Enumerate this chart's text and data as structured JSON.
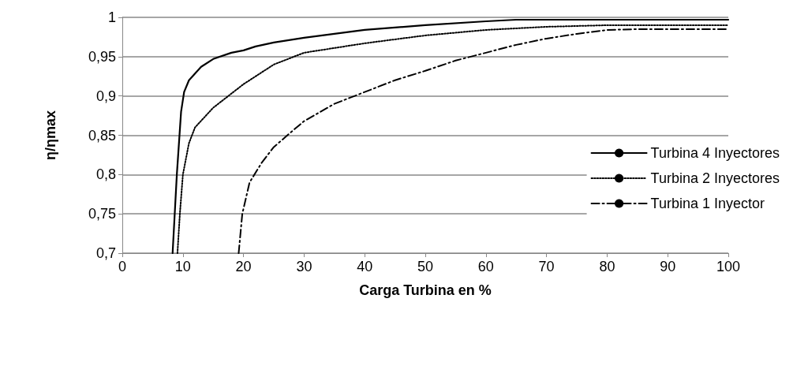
{
  "chart_data": {
    "type": "line",
    "xlabel": "Carga Turbina en %",
    "ylabel": "η/ηmax",
    "xlim": [
      0,
      100
    ],
    "xticks": [
      0,
      10,
      20,
      30,
      40,
      50,
      60,
      70,
      80,
      90,
      100
    ],
    "ylim": [
      0.7,
      1
    ],
    "yticks": [
      {
        "value": 0.7,
        "label": "0,7"
      },
      {
        "value": 0.75,
        "label": "0,75"
      },
      {
        "value": 0.8,
        "label": "0,8"
      },
      {
        "value": 0.85,
        "label": "0,85"
      },
      {
        "value": 0.9,
        "label": "0,9"
      },
      {
        "value": 0.95,
        "label": "0,95"
      },
      {
        "value": 1,
        "label": "1"
      }
    ],
    "grid": "y",
    "legend": "right",
    "marker": "none",
    "series": [
      {
        "name": "Turbina 4 Inyectores",
        "color": "#000000",
        "line_style": "solid",
        "x": [
          8.3,
          9,
          9.7,
          10.2,
          11,
          13,
          15,
          18,
          20,
          22,
          25,
          30,
          40,
          50,
          60,
          65,
          70,
          100
        ],
        "values": [
          0.7,
          0.8,
          0.88,
          0.905,
          0.92,
          0.937,
          0.947,
          0.955,
          0.958,
          0.963,
          0.968,
          0.974,
          0.984,
          0.99,
          0.995,
          0.997,
          0.997,
          0.997
        ]
      },
      {
        "name": "Turbina 2 Inyectores",
        "color": "#000000",
        "line_style": "dotted",
        "x": [
          9.1,
          9.5,
          10,
          11,
          12,
          15,
          20,
          25,
          30,
          40,
          50,
          60,
          70,
          80,
          100
        ],
        "values": [
          0.7,
          0.75,
          0.8,
          0.84,
          0.86,
          0.885,
          0.915,
          0.94,
          0.955,
          0.967,
          0.977,
          0.984,
          0.988,
          0.99,
          0.99
        ]
      },
      {
        "name": "Turbina 1 Inyector",
        "color": "#000000",
        "line_style": "dashdot",
        "x": [
          19.2,
          19.8,
          21,
          23,
          25,
          28,
          30,
          35,
          40,
          45,
          50,
          55,
          60,
          65,
          70,
          75,
          80,
          85,
          100
        ],
        "values": [
          0.7,
          0.75,
          0.79,
          0.815,
          0.835,
          0.855,
          0.868,
          0.89,
          0.905,
          0.92,
          0.932,
          0.945,
          0.955,
          0.965,
          0.973,
          0.979,
          0.984,
          0.985,
          0.985
        ]
      }
    ]
  }
}
